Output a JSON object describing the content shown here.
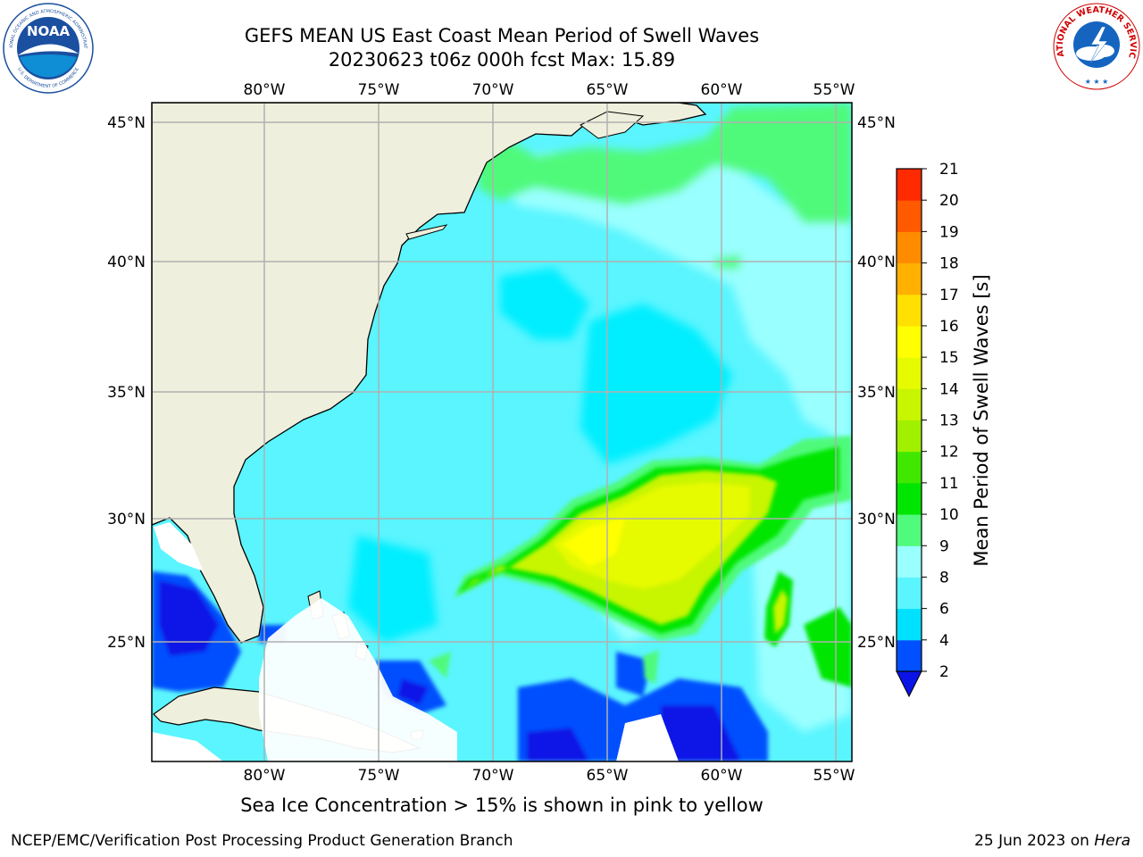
{
  "header": {
    "title_line1": "GEFS MEAN US East Coast Mean Period of Swell Waves",
    "title_line2": "20230623 t06z 000h fcst   Max: 15.89"
  },
  "logos": {
    "left": "noaa-logo",
    "right": "nws-logo",
    "noaa_text": "NOAA",
    "noaa_ring_text": "NATIONAL OCEANIC AND ATMOSPHERIC ADMINISTRATION",
    "noaa_ring_text_bottom": "U.S. DEPARTMENT OF COMMERCE",
    "nws_ring_text": "NATIONAL WEATHER SERVICE"
  },
  "map": {
    "lon_labels": [
      "80°W",
      "75°W",
      "70°W",
      "65°W",
      "60°W",
      "55°W"
    ],
    "lat_labels": [
      "45°N",
      "40°N",
      "35°N",
      "30°N",
      "25°N"
    ],
    "colors": {
      "land": "#efefdd",
      "gridline": "#b0b0b0",
      "coastline": "#000000"
    }
  },
  "colorbar": {
    "label": "Mean Period of Swell Waves [s]",
    "ticks": [
      "2",
      "4",
      "6",
      "8",
      "9",
      "10",
      "11",
      "12",
      "13",
      "14",
      "15",
      "16",
      "17",
      "18",
      "19",
      "20",
      "21"
    ],
    "colors": [
      "#0050ff",
      "#00e0ff",
      "#5af5ff",
      "#9affff",
      "#50fa7a",
      "#00e600",
      "#40e800",
      "#a0f000",
      "#c8f500",
      "#e6fa00",
      "#ffff00",
      "#ffe000",
      "#ffb000",
      "#ff8c00",
      "#ff5a00",
      "#ff2a00"
    ],
    "under_color": "#0a14e6"
  },
  "footer": {
    "note": "Sea Ice Concentration > 15% is shown in pink to yellow",
    "credit": "NCEP/EMC/Verification Post Processing Product Generation Branch",
    "date": "25 Jun 2023 on ",
    "machine": "Hera"
  }
}
